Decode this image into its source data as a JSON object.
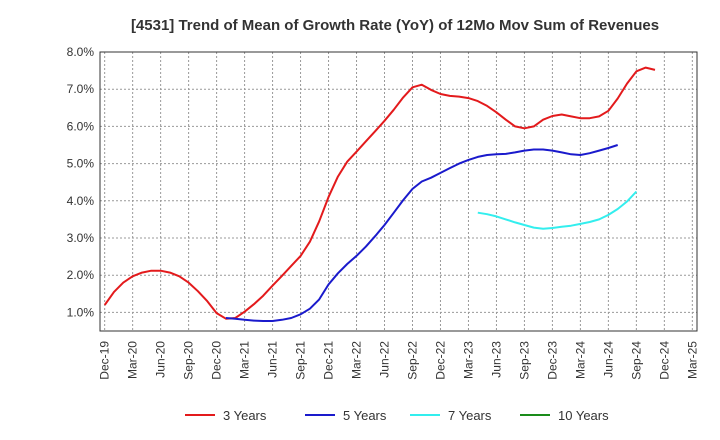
{
  "chart_data": {
    "type": "line",
    "title": "[4531]  Trend of Mean of Growth Rate (YoY) of 12Mo Mov Sum of Revenues",
    "xlabel": "",
    "ylabel": "",
    "ylim": [
      0.5,
      8.0
    ],
    "y_ticks": [
      1.0,
      2.0,
      3.0,
      4.0,
      5.0,
      6.0,
      7.0,
      8.0
    ],
    "y_tick_labels": [
      "1.0%",
      "2.0%",
      "3.0%",
      "4.0%",
      "5.0%",
      "6.0%",
      "7.0%",
      "8.0%"
    ],
    "x_tick_labels": [
      "Dec-19",
      "Mar-20",
      "Jun-20",
      "Sep-20",
      "Dec-20",
      "Mar-21",
      "Jun-21",
      "Sep-21",
      "Dec-21",
      "Mar-22",
      "Jun-22",
      "Sep-22",
      "Dec-22",
      "Mar-23",
      "Jun-23",
      "Sep-23",
      "Dec-23",
      "Mar-24",
      "Jun-24",
      "Sep-24",
      "Dec-24",
      "Mar-25"
    ],
    "x_count": 64,
    "grid": true,
    "legend_position": "bottom",
    "series": [
      {
        "name": "3 Years",
        "color": "#e31a1c",
        "start_index": 0,
        "values": [
          1.2,
          1.55,
          1.8,
          1.97,
          2.07,
          2.12,
          2.12,
          2.07,
          1.97,
          1.8,
          1.57,
          1.3,
          0.98,
          0.83,
          0.85,
          1.02,
          1.22,
          1.45,
          1.72,
          1.98,
          2.25,
          2.52,
          2.9,
          3.45,
          4.1,
          4.65,
          5.05,
          5.32,
          5.6,
          5.87,
          6.15,
          6.45,
          6.78,
          7.05,
          7.12,
          6.98,
          6.87,
          6.82,
          6.8,
          6.76,
          6.68,
          6.55,
          6.38,
          6.18,
          6.0,
          5.95,
          6.0,
          6.18,
          6.28,
          6.32,
          6.27,
          6.22,
          6.22,
          6.27,
          6.42,
          6.75,
          7.15,
          7.48,
          7.58,
          7.52
        ]
      },
      {
        "name": "5 Years",
        "color": "#1a1acc",
        "start_index": 13,
        "values": [
          0.85,
          0.83,
          0.8,
          0.78,
          0.77,
          0.77,
          0.8,
          0.85,
          0.95,
          1.1,
          1.35,
          1.75,
          2.05,
          2.3,
          2.52,
          2.77,
          3.05,
          3.35,
          3.68,
          4.02,
          4.32,
          4.52,
          4.62,
          4.75,
          4.88,
          5.0,
          5.1,
          5.18,
          5.23,
          5.25,
          5.26,
          5.3,
          5.35,
          5.38,
          5.38,
          5.35,
          5.3,
          5.25,
          5.23,
          5.28,
          5.35,
          5.42,
          5.5
        ]
      },
      {
        "name": "7 Years",
        "color": "#33eeee",
        "start_index": 40,
        "values": [
          3.68,
          3.64,
          3.58,
          3.5,
          3.42,
          3.35,
          3.28,
          3.25,
          3.27,
          3.3,
          3.33,
          3.38,
          3.43,
          3.5,
          3.62,
          3.78,
          3.98,
          4.25
        ]
      },
      {
        "name": "10 Years",
        "color": "#1a8c1a",
        "start_index": 0,
        "values": []
      }
    ]
  }
}
